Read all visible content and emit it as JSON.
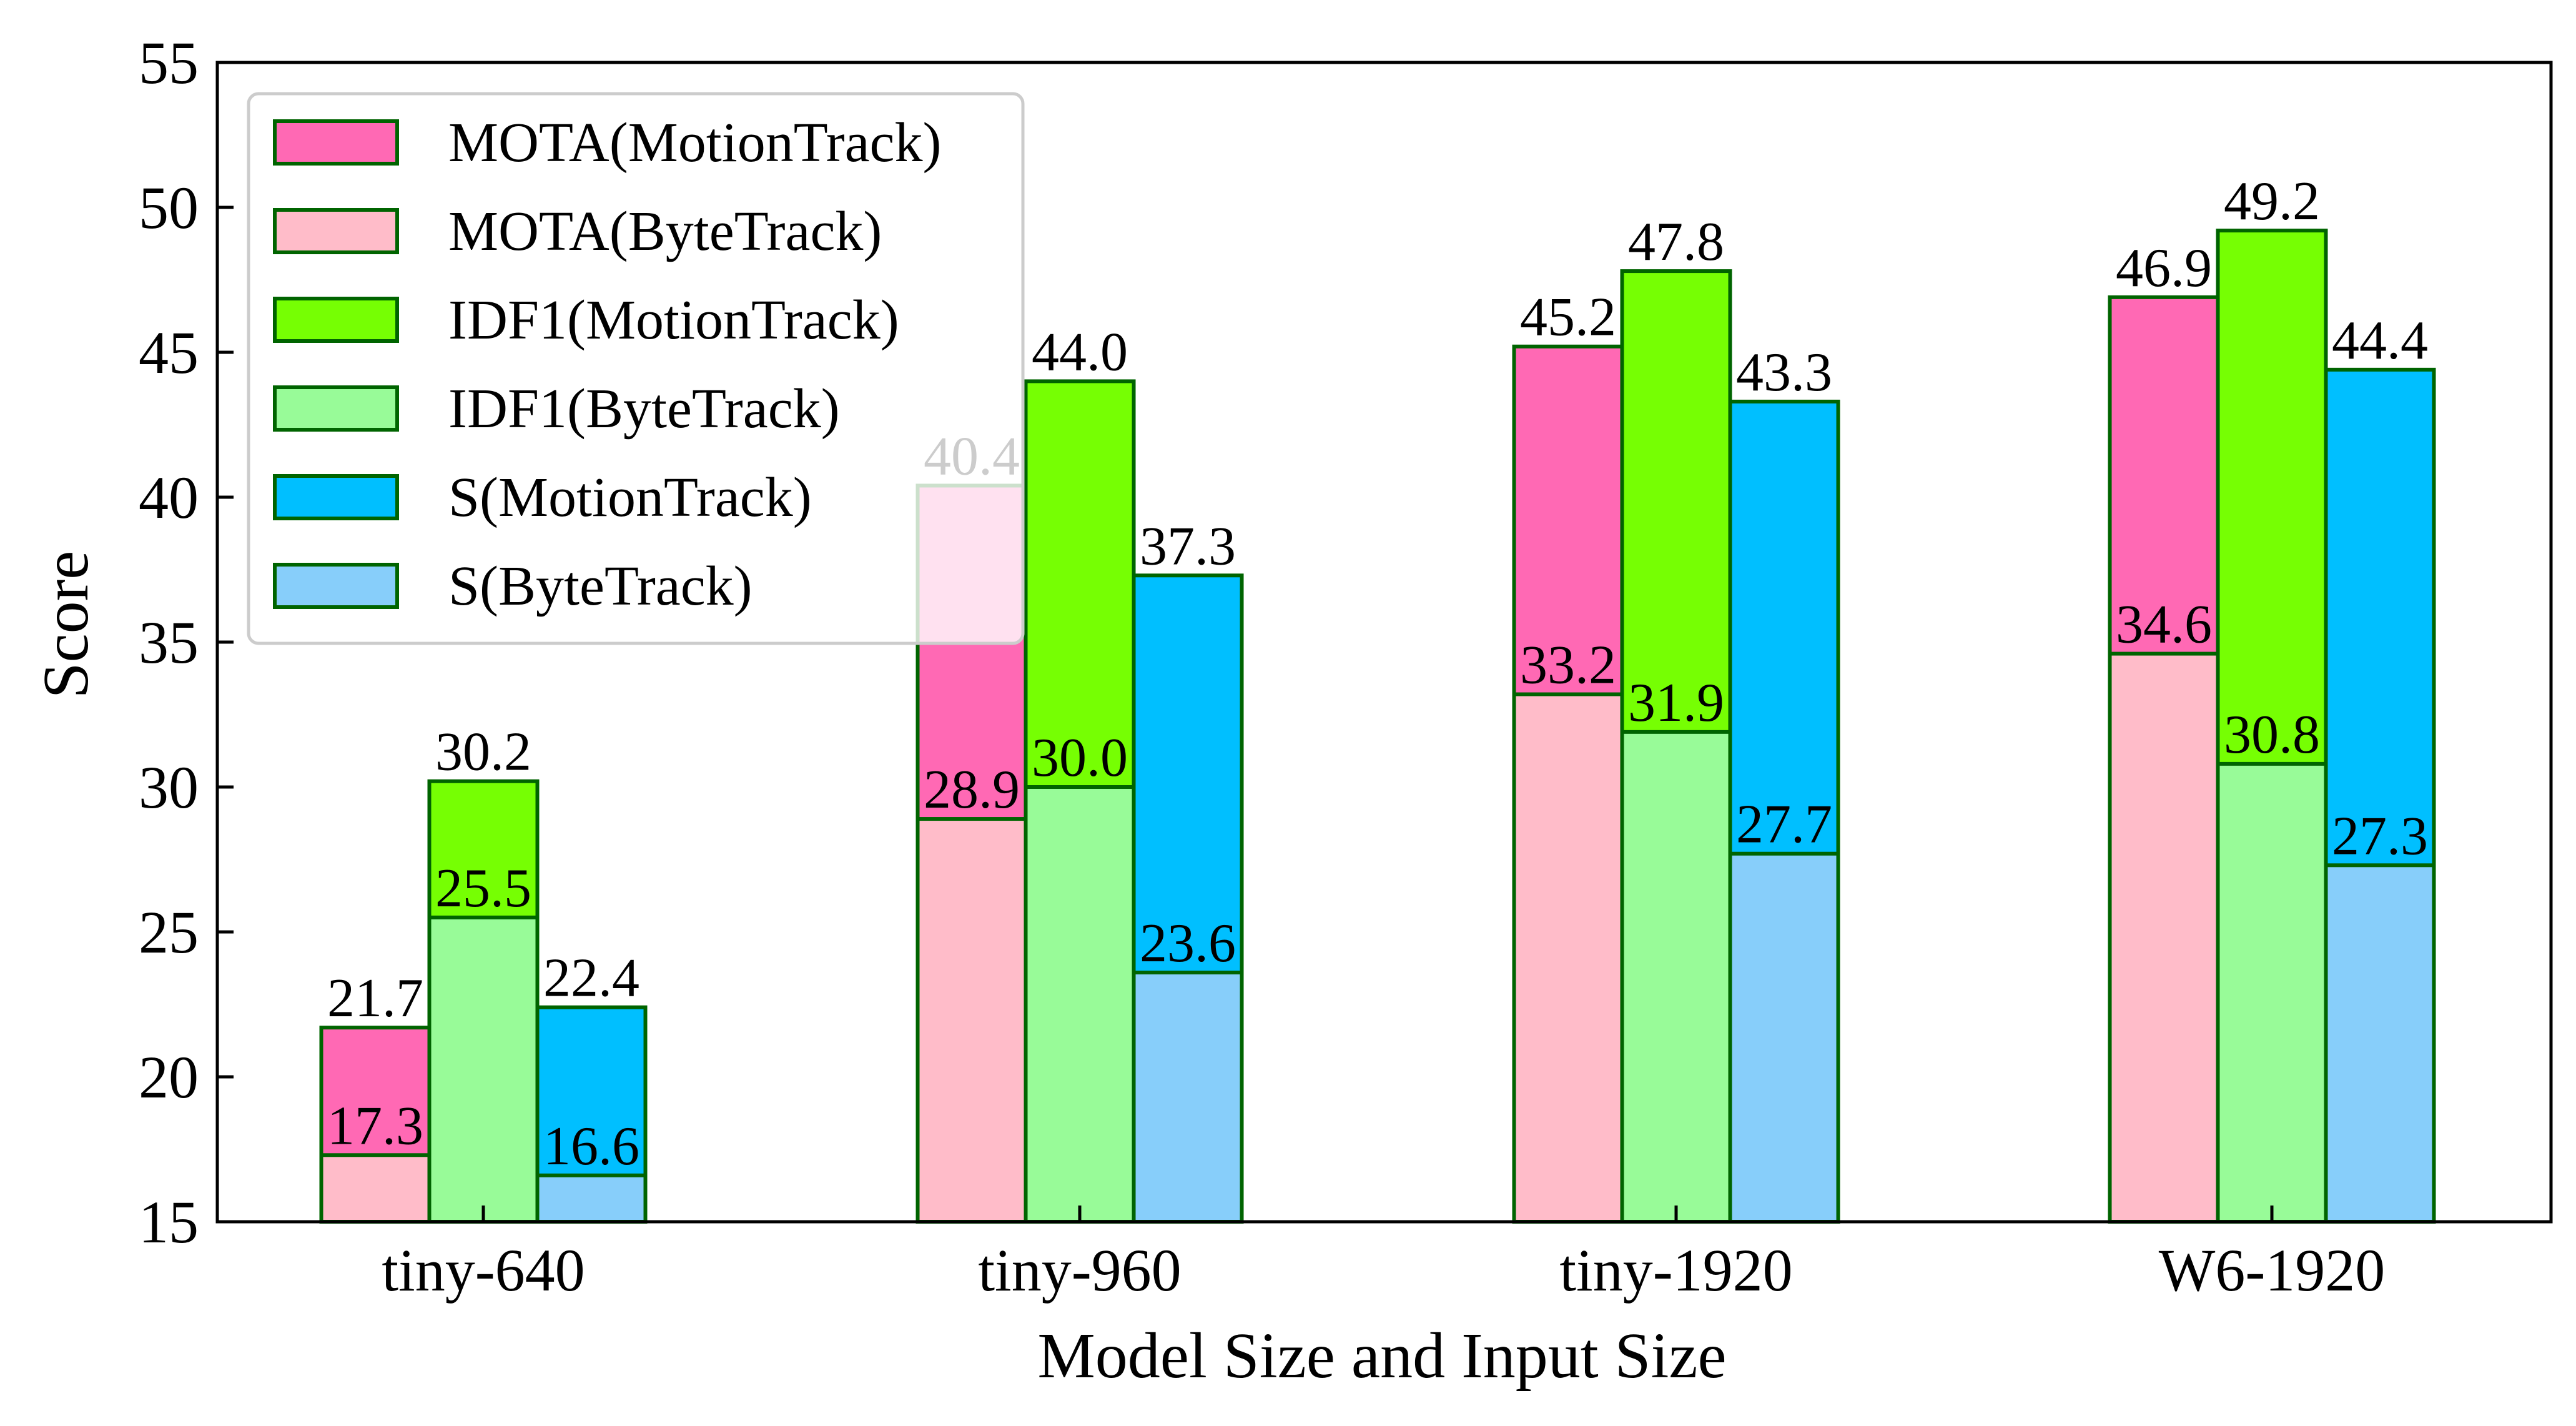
{
  "chart_data": {
    "type": "bar",
    "xlabel": "Model Size and Input Size",
    "ylabel": "Score",
    "ylim": [
      15,
      55
    ],
    "yticks": [
      15,
      20,
      25,
      30,
      35,
      40,
      45,
      50,
      55
    ],
    "categories": [
      "tiny-640",
      "tiny-960",
      "tiny-1920",
      "W6-1920"
    ],
    "grid": false,
    "legend_position": "top-left",
    "bar_groups": [
      "MOTA",
      "IDF1",
      "S"
    ],
    "series": [
      {
        "name": "MOTA(MotionTrack)",
        "group": "MOTA",
        "color": "#ff69b4",
        "values": [
          21.7,
          40.4,
          45.2,
          46.9
        ],
        "labels": [
          "21.7",
          "40.4",
          "45.2",
          "46.9"
        ]
      },
      {
        "name": "MOTA(ByteTrack)",
        "group": "MOTA",
        "color": "#ffbcc9",
        "values": [
          17.3,
          28.9,
          33.2,
          34.6
        ],
        "labels": [
          "17.3",
          "28.9",
          "33.2",
          "34.6"
        ]
      },
      {
        "name": "IDF1(MotionTrack)",
        "group": "IDF1",
        "color": "#76ff03",
        "values": [
          30.2,
          44.0,
          47.8,
          49.2
        ],
        "labels": [
          "30.2",
          "44.0",
          "47.8",
          "49.2"
        ]
      },
      {
        "name": "IDF1(ByteTrack)",
        "group": "IDF1",
        "color": "#98fb98",
        "values": [
          25.5,
          30.0,
          31.9,
          30.8
        ],
        "labels": [
          "25.5",
          "30.0",
          "31.9",
          "30.8"
        ]
      },
      {
        "name": "S(MotionTrack)",
        "group": "S",
        "color": "#00bfff",
        "values": [
          22.4,
          37.3,
          43.3,
          44.4
        ],
        "labels": [
          "22.4",
          "37.3",
          "43.3",
          "44.4"
        ]
      },
      {
        "name": "S(ByteTrack)",
        "group": "S",
        "color": "#87cefa",
        "values": [
          16.6,
          23.6,
          27.7,
          27.3
        ],
        "labels": [
          "16.6",
          "23.6",
          "27.7",
          "27.3"
        ]
      }
    ],
    "bar_edge_color": "#006400"
  }
}
